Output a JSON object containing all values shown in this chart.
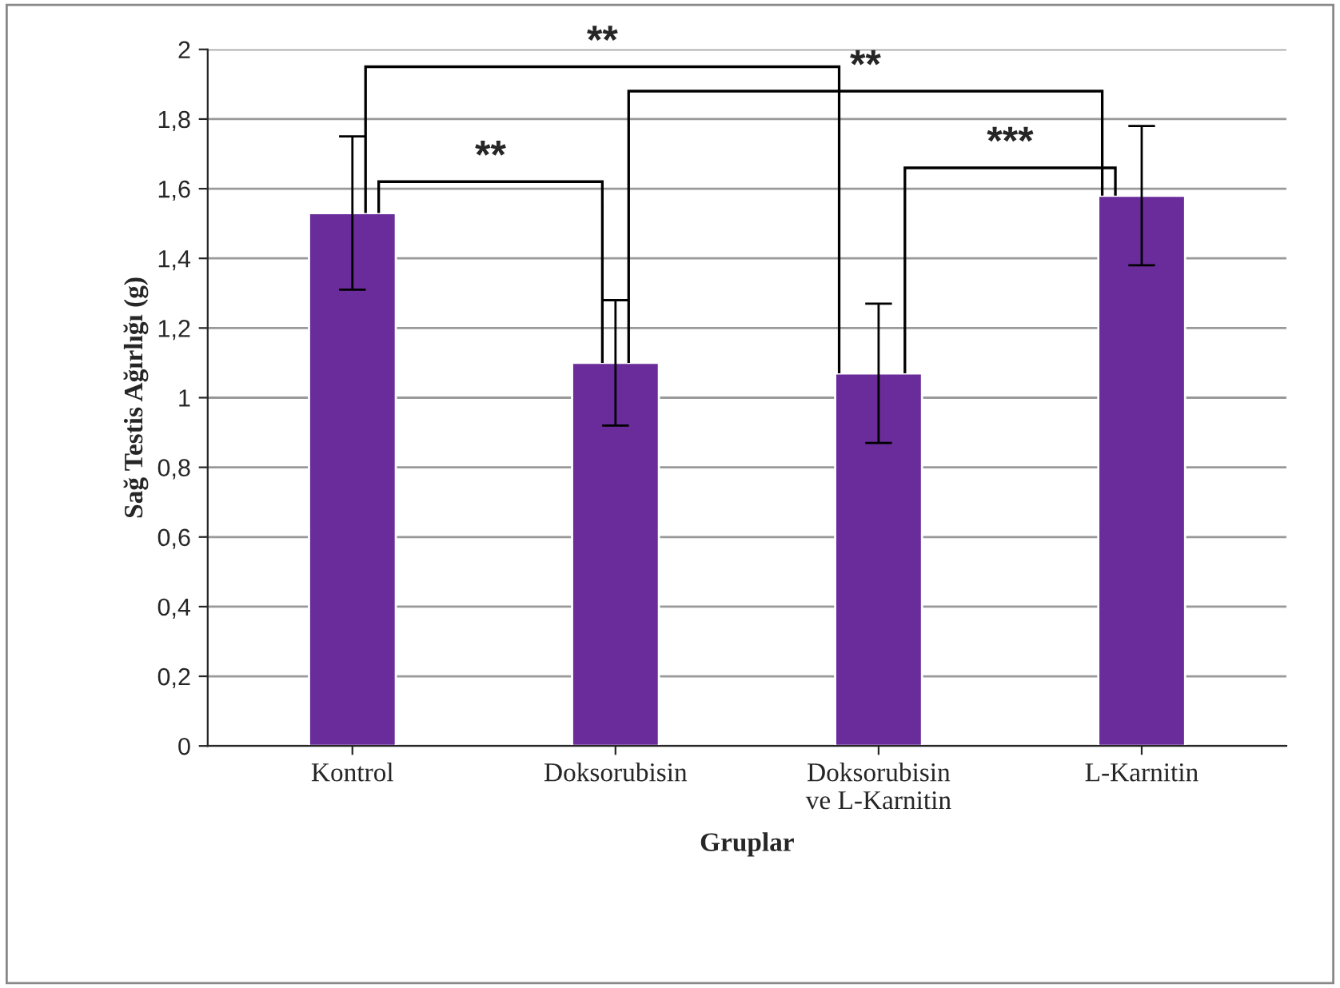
{
  "chart_data": {
    "type": "bar",
    "categories": [
      "Kontrol",
      "Doksorubisin",
      "Doksorubisin\nve L-Karnitin",
      "L-Karnitin"
    ],
    "values": [
      1.53,
      1.1,
      1.07,
      1.58
    ],
    "errors": [
      0.22,
      0.18,
      0.2,
      0.2
    ],
    "color": "#6a2c9a",
    "xlabel": "Gruplar",
    "ylabel": "Sağ Testis Ağırlığı (g)",
    "ylim": [
      0,
      2
    ],
    "yticks": [
      0,
      {
        "value": 0.2,
        "label": "0,2"
      },
      {
        "value": 0.4,
        "label": "0,4"
      },
      {
        "value": 0.6,
        "label": "0,6"
      },
      {
        "value": 0.8,
        "label": "0,8"
      },
      1,
      {
        "value": 1.2,
        "label": "1,2"
      },
      {
        "value": 1.4,
        "label": "1,4"
      },
      {
        "value": 1.6,
        "label": "1,6"
      },
      {
        "value": 1.8,
        "label": "1,8"
      },
      2
    ],
    "grid": "y",
    "annotations": [
      "**",
      "**",
      "**",
      "***"
    ]
  }
}
